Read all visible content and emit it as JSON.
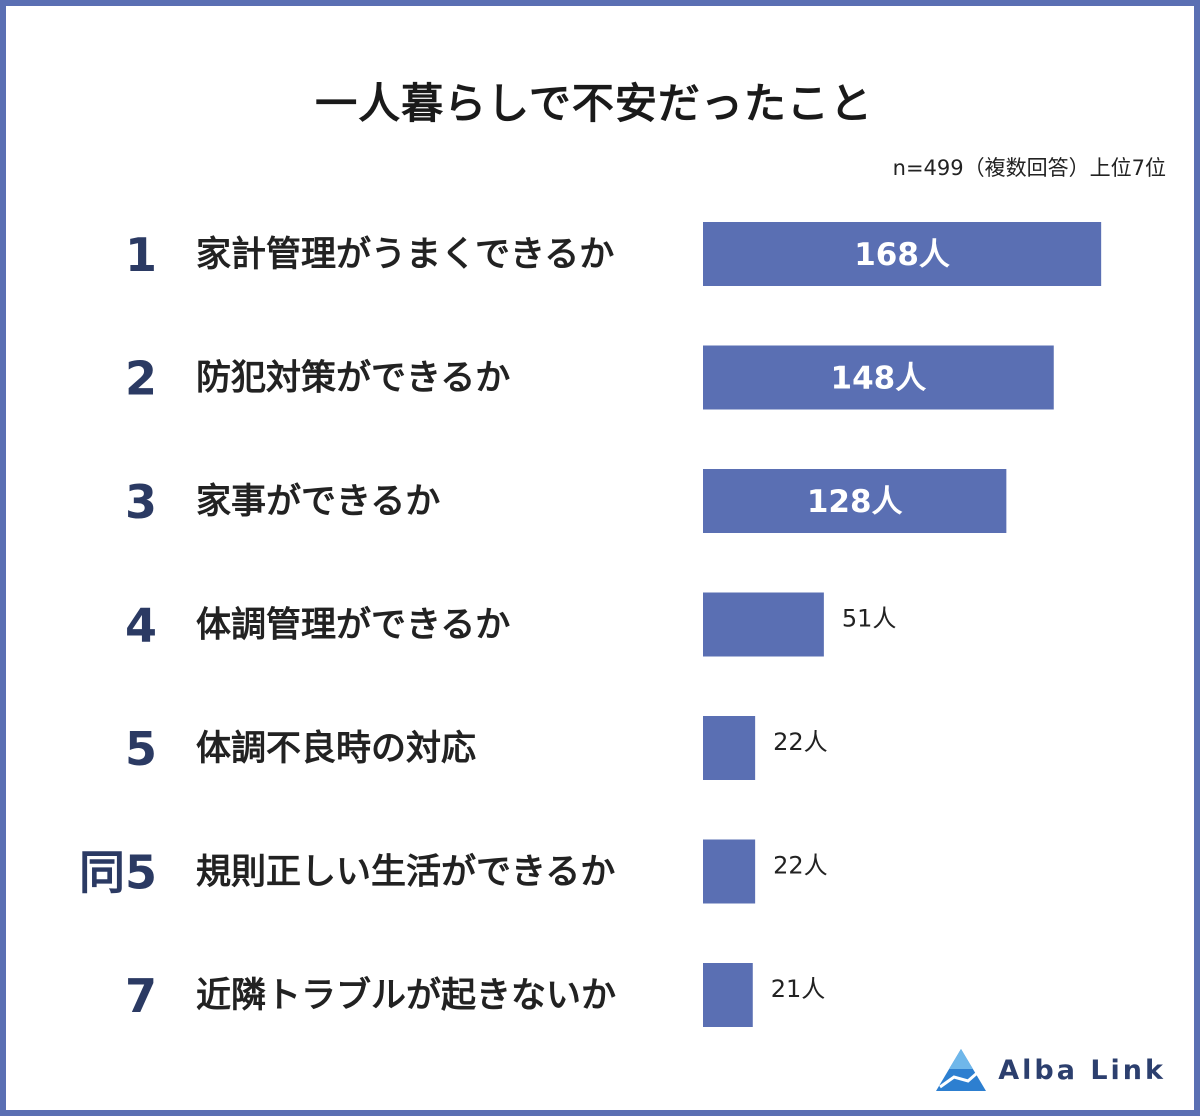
{
  "chart_data": {
    "type": "bar",
    "orientation": "horizontal",
    "title": "一人暮らしで不安だったこと",
    "subtitle": "n=499（複数回答）上位7位",
    "ranks": [
      "1",
      "2",
      "3",
      "4",
      "5",
      "同5",
      "7"
    ],
    "categories": [
      "家計管理がうまくできるか",
      "防犯対策ができるか",
      "家事ができるか",
      "体調管理ができるか",
      "体調不良時の対応",
      "規則正しい生活ができるか",
      "近隣トラブルが起きないか"
    ],
    "values": [
      168,
      148,
      128,
      51,
      22,
      22,
      21
    ],
    "value_labels": [
      "168人",
      "148人",
      "128人",
      "51人",
      "22人",
      "22人",
      "21人"
    ],
    "bar_color": "#5a6fb3",
    "grid": false,
    "legend": "none"
  },
  "logo": {
    "text": "Alba Link"
  }
}
